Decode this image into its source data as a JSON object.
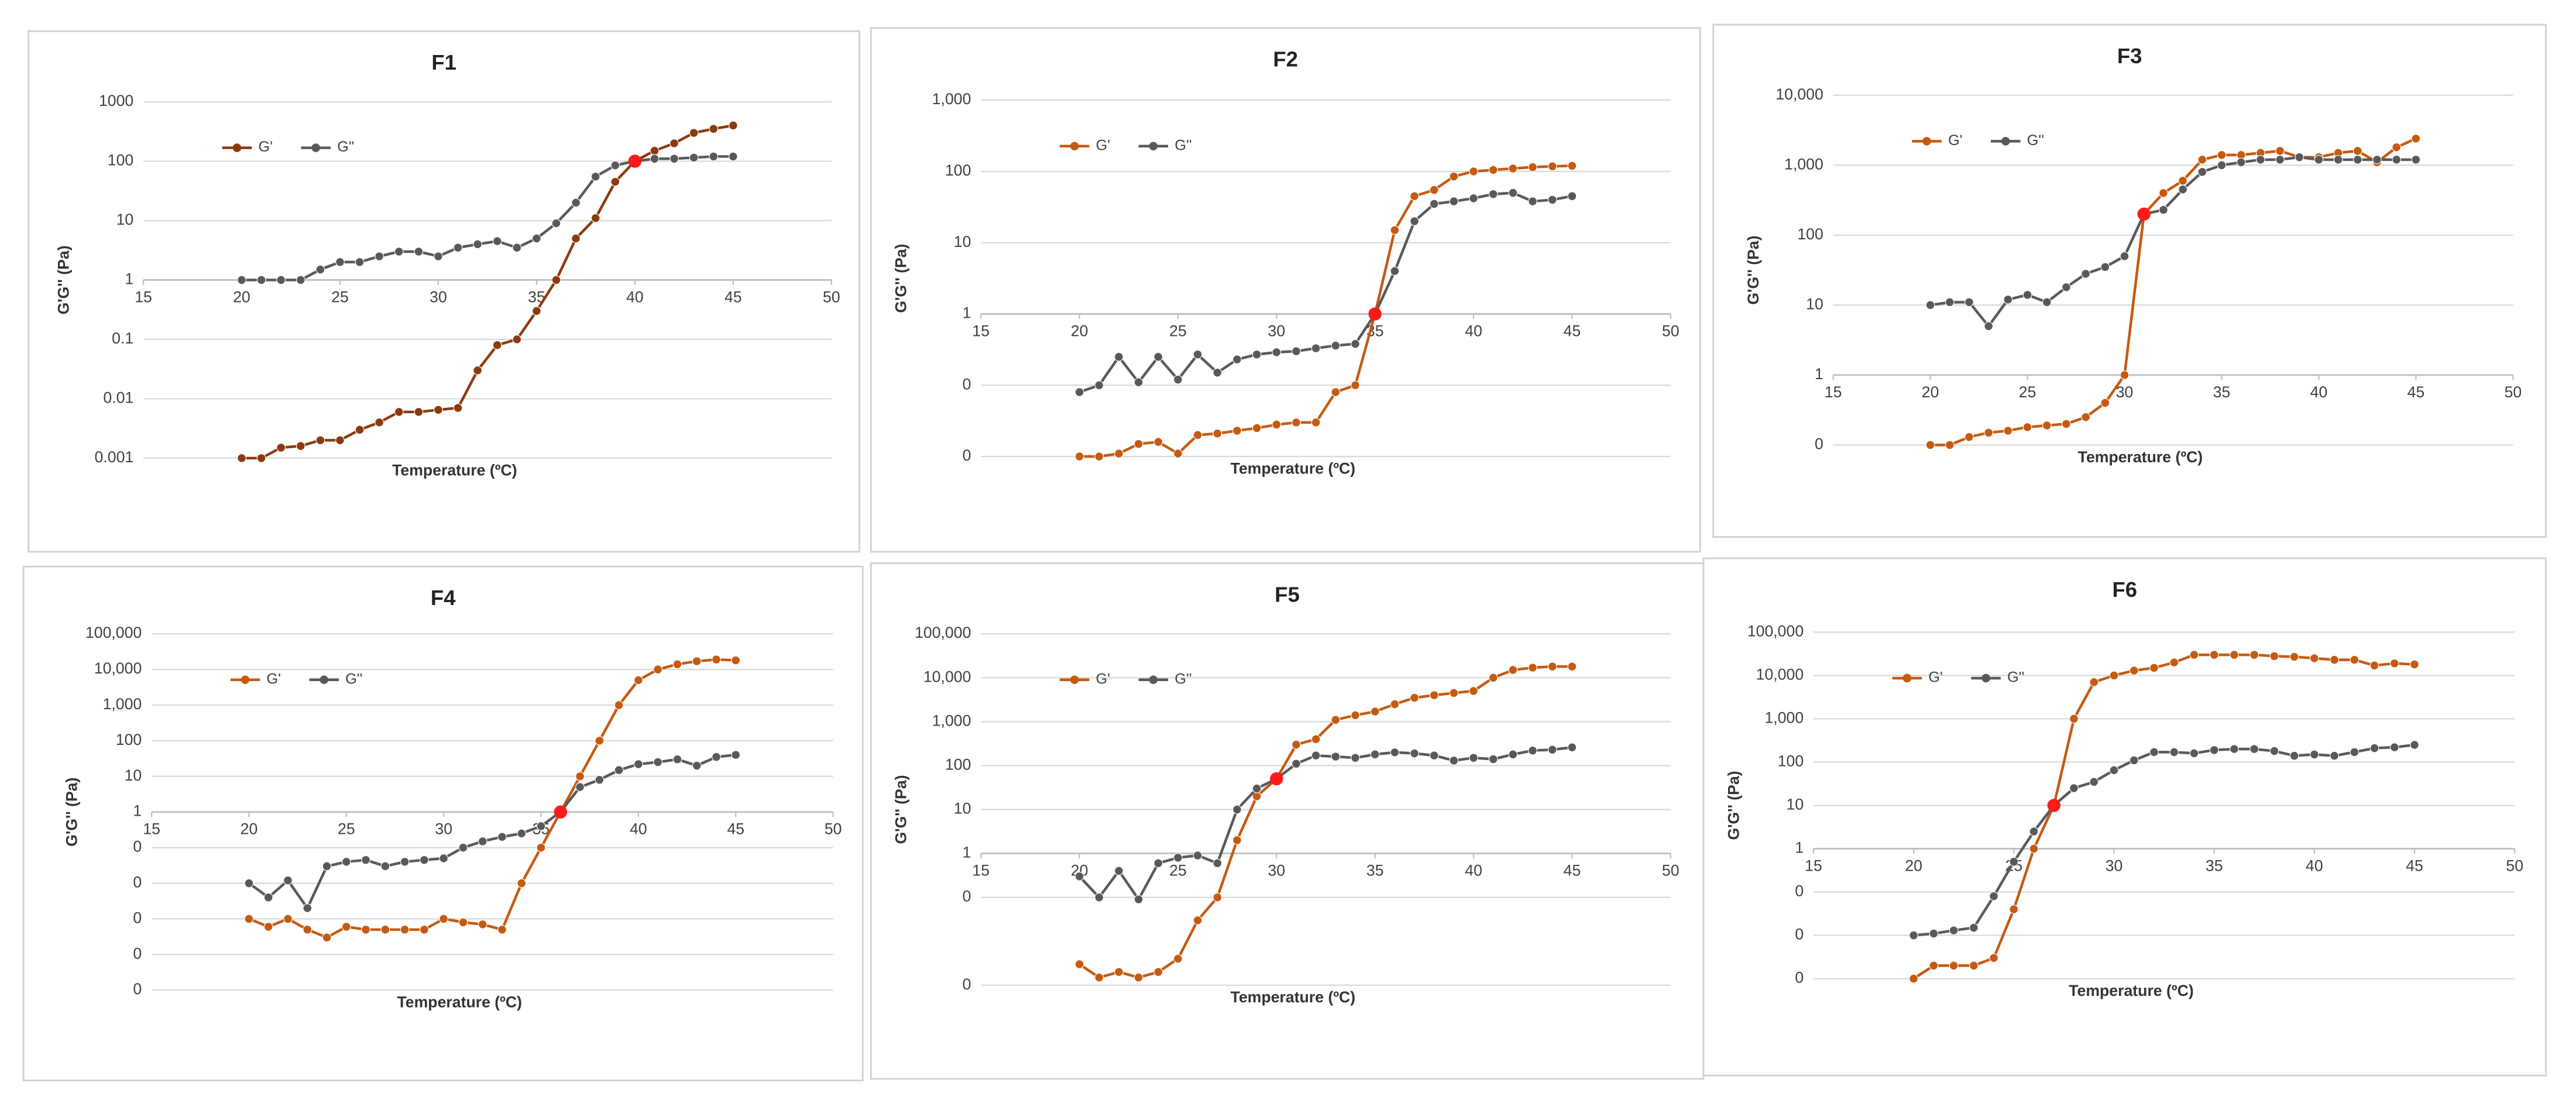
{
  "chart_data": [
    {
      "type": "line",
      "title": "F1",
      "x_label": "Temperature (ºC)",
      "y_label": "G'G'' (Pa)",
      "x": [
        20,
        21,
        22,
        23,
        24,
        25,
        26,
        27,
        28,
        29,
        30,
        31,
        32,
        33,
        34,
        35,
        36,
        37,
        38,
        39,
        40,
        41,
        42,
        43,
        44,
        45
      ],
      "series": [
        {
          "name": "G'",
          "color": "#8b3a0f",
          "values": [
            0.001,
            0.001,
            0.0015,
            0.0016,
            0.002,
            0.002,
            0.003,
            0.004,
            0.006,
            0.006,
            0.0065,
            0.007,
            0.03,
            0.08,
            0.1,
            0.3,
            1,
            5,
            11,
            45,
            100,
            150,
            200,
            300,
            350,
            400
          ]
        },
        {
          "name": "G''",
          "color": "#595959",
          "values": [
            1,
            1,
            1,
            1,
            1.5,
            2,
            2,
            2.5,
            3,
            3,
            2.5,
            3.5,
            4,
            4.5,
            3.5,
            5,
            9,
            20,
            55,
            85,
            100,
            110,
            110,
            115,
            120,
            120
          ]
        }
      ],
      "xlim": [
        15,
        50
      ],
      "xticks": [
        15,
        20,
        25,
        30,
        35,
        40,
        45,
        50
      ],
      "ylim": [
        0.001,
        1000
      ],
      "yticks": [
        0.001,
        0.01,
        0.1,
        1,
        10,
        100,
        1000
      ],
      "log_scale_y": true,
      "grid": true,
      "x_axis_crossing": 1,
      "crossover": {
        "x": 40,
        "y": 100,
        "color": "#ff1a1a"
      }
    },
    {
      "type": "line",
      "title": "F2",
      "x_label": "Temperature (ºC)",
      "y_label": "G'G'' (Pa)",
      "x": [
        20,
        21,
        22,
        23,
        24,
        25,
        26,
        27,
        28,
        29,
        30,
        31,
        32,
        33,
        34,
        35,
        36,
        37,
        38,
        39,
        40,
        41,
        42,
        43,
        44,
        45
      ],
      "series": [
        {
          "name": "G'",
          "color": "#c55a11",
          "values": [
            0.01,
            0.01,
            0.011,
            0.015,
            0.016,
            0.011,
            0.02,
            0.021,
            0.023,
            0.025,
            0.028,
            0.03,
            0.03,
            0.08,
            0.1,
            1,
            15,
            45,
            55,
            85,
            100,
            105,
            110,
            115,
            118,
            120
          ]
        },
        {
          "name": "G''",
          "color": "#595959",
          "values": [
            0.08,
            0.1,
            0.25,
            0.11,
            0.25,
            0.12,
            0.27,
            0.15,
            0.23,
            0.27,
            0.29,
            0.3,
            0.33,
            0.36,
            0.38,
            1,
            4,
            20,
            35,
            38,
            42,
            48,
            50,
            38,
            40,
            45
          ]
        }
      ],
      "xlim": [
        15,
        50
      ],
      "xticks": [
        15,
        20,
        25,
        30,
        35,
        40,
        45,
        50
      ],
      "ylim": [
        0.01,
        1000
      ],
      "yticks": [
        {
          "value": 0.01,
          "label": "0"
        },
        {
          "value": 0.1,
          "label": "0"
        },
        1,
        10,
        100,
        {
          "value": 1000,
          "label": "1,000"
        }
      ],
      "log_scale_y": true,
      "grid": true,
      "x_axis_crossing": 1,
      "crossover": {
        "x": 35,
        "y": 1,
        "color": "#ff1a1a"
      }
    },
    {
      "type": "line",
      "title": "F3",
      "x_label": "Temperature (ºC)",
      "y_label": "G'G'' (Pa)",
      "x": [
        20,
        21,
        22,
        23,
        24,
        25,
        26,
        27,
        28,
        29,
        30,
        31,
        32,
        33,
        34,
        35,
        36,
        37,
        38,
        39,
        40,
        41,
        42,
        43,
        44,
        45
      ],
      "series": [
        {
          "name": "G'",
          "color": "#c55a11",
          "values": [
            0.1,
            0.1,
            0.13,
            0.15,
            0.16,
            0.18,
            0.19,
            0.2,
            0.25,
            0.4,
            1,
            200,
            400,
            600,
            1200,
            1400,
            1400,
            1500,
            1600,
            1300,
            1300,
            1500,
            1600,
            1100,
            1800,
            2400
          ]
        },
        {
          "name": "G''",
          "color": "#595959",
          "values": [
            10,
            11,
            11,
            5,
            12,
            14,
            11,
            18,
            28,
            35,
            50,
            200,
            230,
            450,
            800,
            1000,
            1100,
            1200,
            1200,
            1300,
            1200,
            1200,
            1200,
            1200,
            1200,
            1200
          ]
        }
      ],
      "xlim": [
        15,
        50
      ],
      "xticks": [
        15,
        20,
        25,
        30,
        35,
        40,
        45,
        50
      ],
      "ylim": [
        0.1,
        10000
      ],
      "yticks": [
        {
          "value": 0.1,
          "label": "0"
        },
        1,
        10,
        100,
        {
          "value": 1000,
          "label": "1,000"
        },
        {
          "value": 10000,
          "label": "10,000"
        }
      ],
      "log_scale_y": true,
      "grid": true,
      "x_axis_crossing": 1,
      "crossover": {
        "x": 31,
        "y": 200,
        "color": "#ff1a1a"
      }
    },
    {
      "type": "line",
      "title": "F4",
      "x_label": "Temperature (ºC)",
      "y_label": "G'G'' (Pa)",
      "x": [
        20,
        21,
        22,
        23,
        24,
        25,
        26,
        27,
        28,
        29,
        30,
        31,
        32,
        33,
        34,
        35,
        36,
        37,
        38,
        39,
        40,
        41,
        42,
        43,
        44,
        45
      ],
      "series": [
        {
          "name": "G'",
          "color": "#c55a11",
          "values": [
            0.001,
            0.0006,
            0.001,
            0.0005,
            0.0003,
            0.0006,
            0.0005,
            0.0005,
            0.0005,
            0.0005,
            0.001,
            0.0008,
            0.0007,
            0.0005,
            0.01,
            0.1,
            1,
            10,
            100,
            1000,
            5000,
            10000,
            14000,
            17000,
            19000,
            18000
          ]
        },
        {
          "name": "G''",
          "color": "#595959",
          "values": [
            0.01,
            0.004,
            0.012,
            0.002,
            0.03,
            0.04,
            0.045,
            0.03,
            0.04,
            0.045,
            0.05,
            0.1,
            0.15,
            0.2,
            0.25,
            0.4,
            1,
            5,
            8,
            15,
            22,
            25,
            30,
            20,
            35,
            40
          ]
        }
      ],
      "xlim": [
        15,
        50
      ],
      "xticks": [
        15,
        20,
        25,
        30,
        35,
        40,
        45,
        50
      ],
      "ylim": [
        1e-05,
        100000
      ],
      "yticks": [
        {
          "value": 1e-05,
          "label": "0"
        },
        {
          "value": 0.0001,
          "label": "0"
        },
        {
          "value": 0.001,
          "label": "0"
        },
        {
          "value": 0.01,
          "label": "0"
        },
        {
          "value": 0.1,
          "label": "0"
        },
        1,
        10,
        100,
        {
          "value": 1000,
          "label": "1,000"
        },
        {
          "value": 10000,
          "label": "10,000"
        },
        {
          "value": 100000,
          "label": "100,000"
        }
      ],
      "log_scale_y": true,
      "grid": true,
      "x_axis_crossing": 1,
      "crossover": {
        "x": 36,
        "y": 1,
        "color": "#ff1a1a"
      }
    },
    {
      "type": "line",
      "title": "F5",
      "x_label": "Temperature (ºC)",
      "y_label": "G'G'' (Pa)",
      "x": [
        20,
        21,
        22,
        23,
        24,
        25,
        26,
        27,
        28,
        29,
        30,
        31,
        32,
        33,
        34,
        35,
        36,
        37,
        38,
        39,
        40,
        41,
        42,
        43,
        44,
        45
      ],
      "series": [
        {
          "name": "G'",
          "color": "#c55a11",
          "values": [
            0.003,
            0.0015,
            0.002,
            0.0015,
            0.002,
            0.004,
            0.03,
            0.1,
            2,
            20,
            50,
            300,
            400,
            1100,
            1400,
            1700,
            2500,
            3500,
            4000,
            4500,
            5000,
            10000,
            15000,
            17000,
            18000,
            18000
          ]
        },
        {
          "name": "G''",
          "color": "#595959",
          "values": [
            0.3,
            0.1,
            0.4,
            0.09,
            0.6,
            0.8,
            0.9,
            0.6,
            10,
            30,
            50,
            110,
            170,
            160,
            150,
            180,
            200,
            190,
            170,
            130,
            150,
            140,
            180,
            220,
            230,
            260
          ]
        }
      ],
      "xlim": [
        15,
        50
      ],
      "xticks": [
        15,
        20,
        25,
        30,
        35,
        40,
        45,
        50
      ],
      "ylim": [
        0.001,
        100000
      ],
      "yticks": [
        {
          "value": 0.001,
          "label": "0"
        },
        {
          "value": 0.1,
          "label": "0"
        },
        1,
        10,
        100,
        {
          "value": 1000,
          "label": "1,000"
        },
        {
          "value": 10000,
          "label": "10,000"
        },
        {
          "value": 100000,
          "label": "100,000"
        }
      ],
      "log_scale_y": true,
      "grid": true,
      "x_axis_crossing": 1,
      "crossover": {
        "x": 30,
        "y": 50,
        "color": "#ff1a1a"
      }
    },
    {
      "type": "line",
      "title": "F6",
      "x_label": "Temperature (ºC)",
      "y_label": "G'G'' (Pa)",
      "x": [
        20,
        21,
        22,
        23,
        24,
        25,
        26,
        27,
        28,
        29,
        30,
        31,
        32,
        33,
        34,
        35,
        36,
        37,
        38,
        39,
        40,
        41,
        42,
        43,
        44,
        45
      ],
      "series": [
        {
          "name": "G'",
          "color": "#c55a11",
          "values": [
            0.001,
            0.002,
            0.002,
            0.002,
            0.003,
            0.04,
            1,
            10,
            1000,
            7000,
            10000,
            13000,
            15000,
            20000,
            30000,
            30000,
            30000,
            30000,
            28000,
            27000,
            25000,
            23000,
            23000,
            17000,
            19000,
            18000
          ]
        },
        {
          "name": "G''",
          "color": "#595959",
          "values": [
            0.01,
            0.011,
            0.013,
            0.015,
            0.08,
            0.5,
            2.5,
            10,
            25,
            35,
            65,
            110,
            170,
            170,
            160,
            190,
            200,
            200,
            180,
            140,
            150,
            140,
            170,
            210,
            220,
            250
          ]
        }
      ],
      "xlim": [
        15,
        50
      ],
      "xticks": [
        15,
        20,
        25,
        30,
        35,
        40,
        45,
        50
      ],
      "ylim": [
        0.001,
        100000
      ],
      "yticks": [
        {
          "value": 0.001,
          "label": "0"
        },
        {
          "value": 0.01,
          "label": "0"
        },
        {
          "value": 0.1,
          "label": "0"
        },
        1,
        10,
        100,
        {
          "value": 1000,
          "label": "1,000"
        },
        {
          "value": 10000,
          "label": "10,000"
        },
        {
          "value": 100000,
          "label": "100,000"
        }
      ],
      "log_scale_y": true,
      "grid": true,
      "x_axis_crossing": 1,
      "crossover": {
        "x": 27,
        "y": 10,
        "color": "#ff1a1a"
      }
    }
  ]
}
